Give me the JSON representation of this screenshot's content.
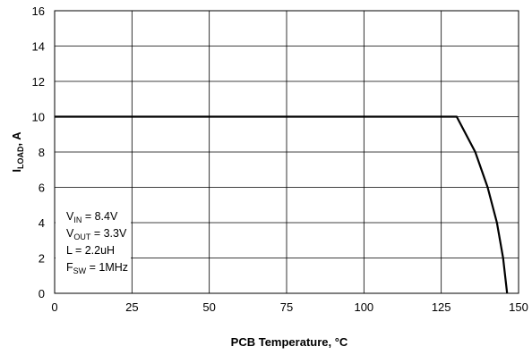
{
  "chart_data": {
    "type": "line",
    "xlabel": {
      "text": "PCB Temperature, ",
      "unit": "°C"
    },
    "ylabel": {
      "main": "I",
      "sub": "LOAD",
      "suffix": ", A"
    },
    "xlim": [
      0,
      150
    ],
    "ylim": [
      0,
      16
    ],
    "x_ticks": [
      0,
      25,
      50,
      75,
      100,
      125,
      150
    ],
    "y_ticks": [
      0,
      2,
      4,
      6,
      8,
      10,
      12,
      14,
      16
    ],
    "grid": true,
    "series": [
      {
        "x": [
          0,
          130,
          136,
          140,
          143,
          145,
          146.3
        ],
        "y": [
          10,
          10,
          8,
          6,
          4,
          2,
          0
        ],
        "color": "#000000"
      }
    ],
    "annotation": [
      {
        "main": "V",
        "sub": "IN",
        "rest": " = 8.4V"
      },
      {
        "main": "V",
        "sub": "OUT",
        "rest": " = 3.3V"
      },
      {
        "main": "L = 2.2uH",
        "sub": "",
        "rest": ""
      },
      {
        "main": "F",
        "sub": "SW",
        "rest": " = 1MHz"
      }
    ]
  }
}
